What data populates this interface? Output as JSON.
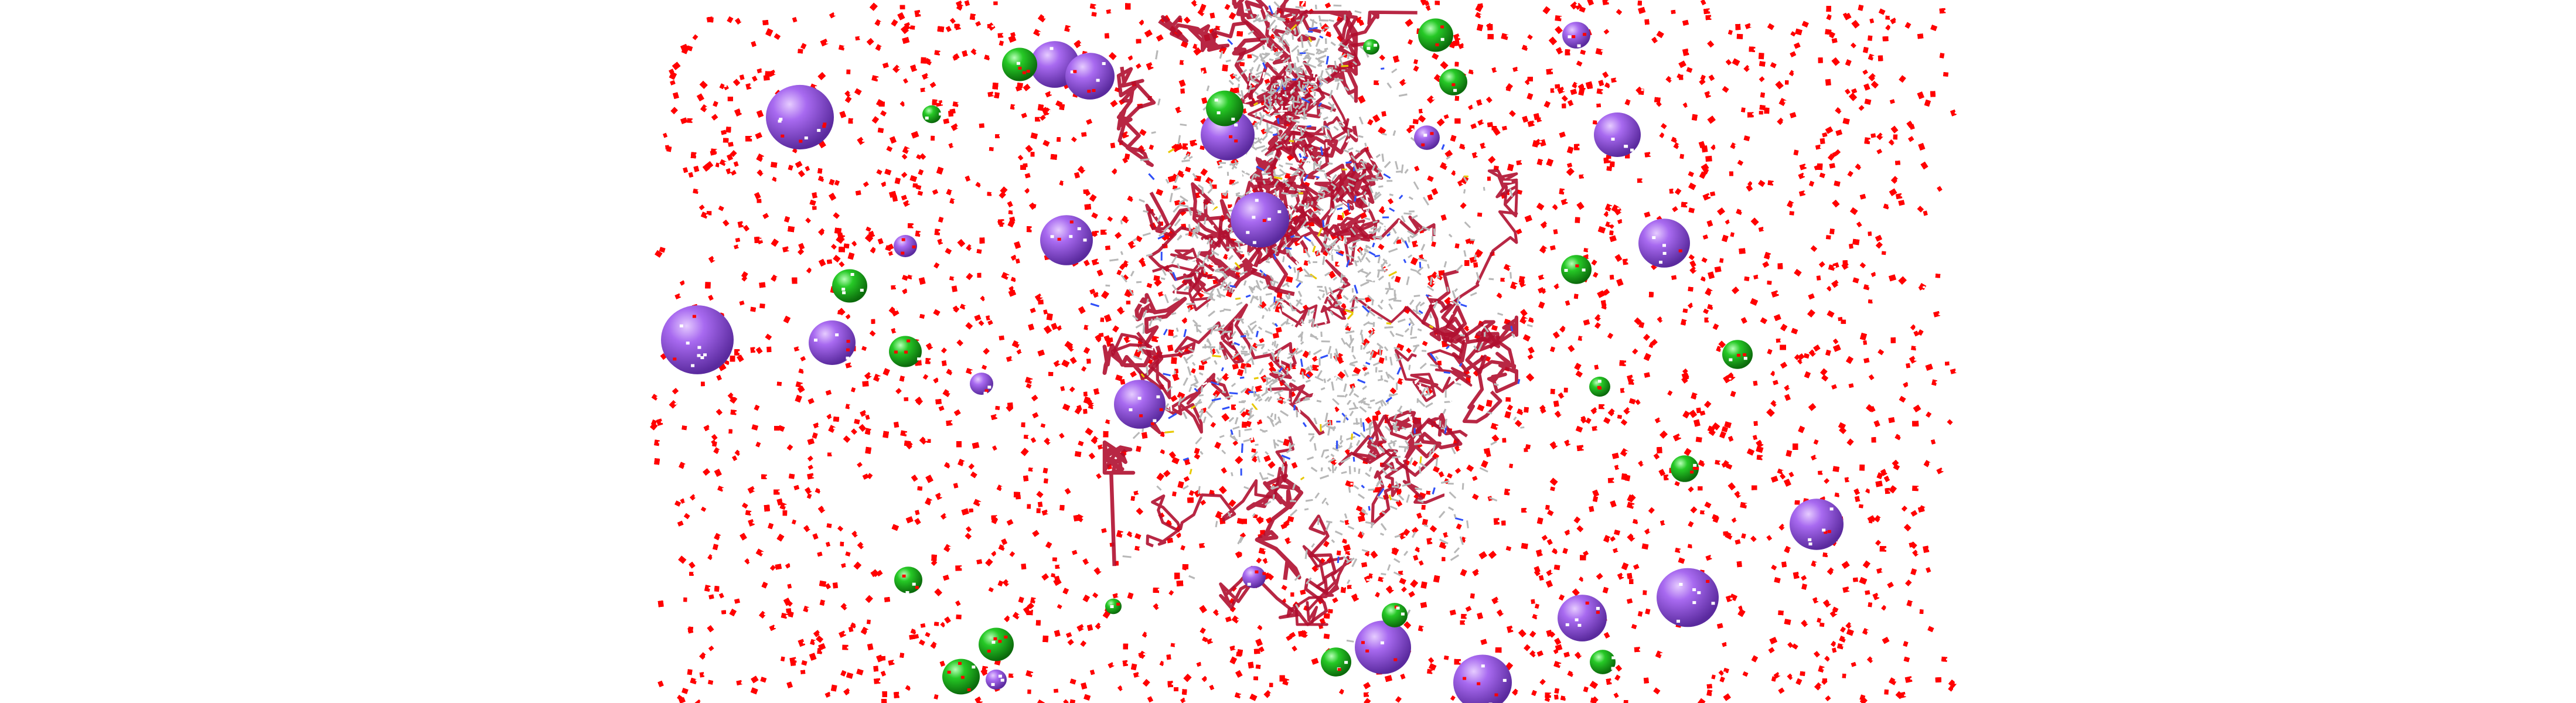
{
  "viewer": {
    "background_color": "#ffffff",
    "representation": "molecular-dynamics-solvated-protein",
    "colors": {
      "water_oxygen": "#ff0000",
      "water_hydrogen": "#ffffff",
      "protein_ribbon": "#b01030",
      "protein_carbon": "#b8b8b8",
      "protein_nitrogen": "#3050f8",
      "protein_sulfur": "#e8c800",
      "sodium_ion": "#9b59e8",
      "chloride_ion": "#1fbf1f"
    }
  }
}
